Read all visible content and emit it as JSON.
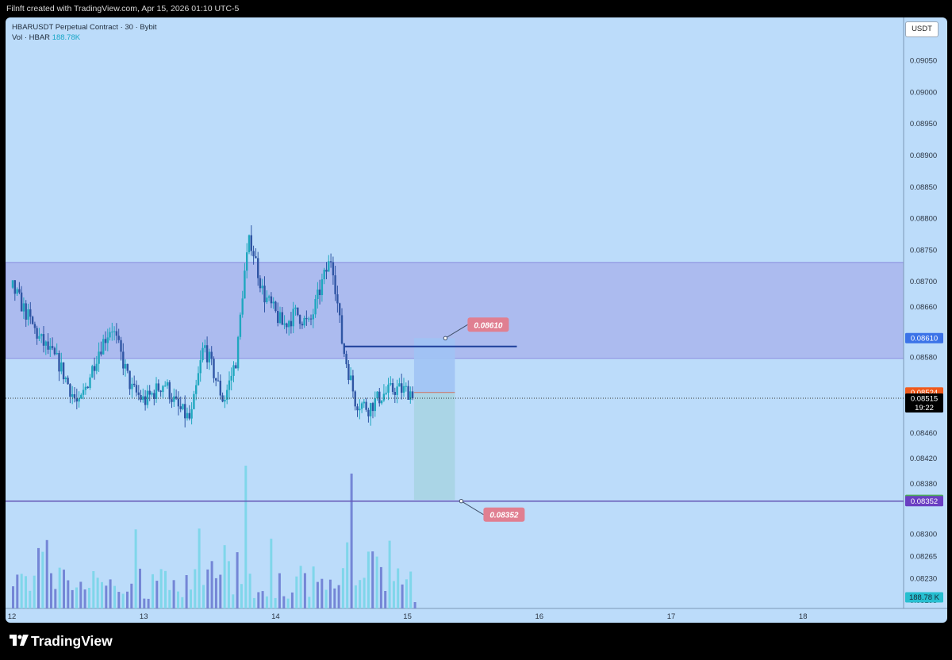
{
  "header": {
    "caption": "Filnft created with TradingView.com, Apr 15, 2026 01:10 UTC-5"
  },
  "legend": {
    "symbol": "HBARUSDT Perpetual Contract · 30 · Bybit",
    "vol_label": "Vol · HBAR",
    "vol_value": "188.78K"
  },
  "currency_button": "USDT",
  "footer": {
    "brand": "TradingView"
  },
  "colors": {
    "background": "#bcdcfa",
    "candle_up": "#1fa7bf",
    "candle_down": "#2f55a4",
    "zone": "#a9b5ec",
    "target_zone": "#a0c3f4",
    "stop_zone": "#a9d4e5",
    "entry_line": "#1d3f9a",
    "support_line": "#6454b4",
    "label_red": "#e07f91",
    "axis_blue": "#3b73e8",
    "axis_orange": "#f05a1c",
    "axis_green": "#4cae5a",
    "axis_purple": "#6a3ec2",
    "axis_teal": "#27bfd0"
  },
  "chart_data": {
    "type": "candlestick",
    "symbol": "HBARUSDT",
    "interval": "30",
    "exchange": "Bybit",
    "ylim": [
      0.08182,
      0.09118
    ],
    "x": [
      "12",
      "13",
      "14",
      "15",
      "16",
      "17",
      "18"
    ],
    "y_ticks": [
      "0.09050",
      "0.09000",
      "0.08950",
      "0.08900",
      "0.08850",
      "0.08800",
      "0.08750",
      "0.08700",
      "0.08660",
      "0.08580",
      "0.08460",
      "0.08420",
      "0.08380",
      "0.08300",
      "0.08265",
      "0.08230",
      "0.08195"
    ],
    "price_labels": [
      {
        "name": "target",
        "text": "0.08610",
        "value": 0.0861
      },
      {
        "name": "last-candle-open",
        "text": "0.08524",
        "value": 0.08524
      },
      {
        "name": "last-price",
        "text": "0.08515",
        "value": 0.08515,
        "time": "19:22"
      },
      {
        "name": "stop",
        "text": "0.08354",
        "value": 0.08354
      },
      {
        "name": "support",
        "text": "0.08352",
        "value": 0.08352
      },
      {
        "name": "volume",
        "text": "188.78 K"
      }
    ],
    "annotations": [
      {
        "type": "zone",
        "y_top": 0.0873,
        "y_bottom": 0.08578
      },
      {
        "type": "horizontal-line",
        "name": "entry-line",
        "y": 0.08597,
        "x_start": 14.52,
        "x_end": 15.83
      },
      {
        "type": "horizontal-line",
        "name": "support-line",
        "y": 0.08352
      },
      {
        "type": "position",
        "entry": 0.08524,
        "target": 0.0861,
        "stop": 0.08354,
        "x_start": 15.05,
        "x_end": 15.36
      },
      {
        "type": "label",
        "text": "0.08610",
        "value": 0.0861
      },
      {
        "type": "label",
        "text": "0.08352",
        "value": 0.08352
      }
    ],
    "series_path": [
      [
        12.0,
        0.0869
      ],
      [
        12.2,
        0.0861
      ],
      [
        12.35,
        0.0857
      ],
      [
        12.5,
        0.085
      ],
      [
        12.65,
        0.0859
      ],
      [
        12.75,
        0.0863
      ],
      [
        12.9,
        0.0853
      ],
      [
        13.0,
        0.0851
      ],
      [
        13.15,
        0.0854
      ],
      [
        13.25,
        0.085
      ],
      [
        13.35,
        0.0848
      ],
      [
        13.45,
        0.086
      ],
      [
        13.6,
        0.0851
      ],
      [
        13.7,
        0.0858
      ],
      [
        13.75,
        0.087
      ],
      [
        13.8,
        0.0877
      ],
      [
        13.9,
        0.0868
      ],
      [
        14.05,
        0.0863
      ],
      [
        14.15,
        0.0865
      ],
      [
        14.25,
        0.0863
      ],
      [
        14.35,
        0.087
      ],
      [
        14.42,
        0.0874
      ],
      [
        14.5,
        0.086
      ],
      [
        14.6,
        0.0851
      ],
      [
        14.7,
        0.085
      ],
      [
        14.8,
        0.0852
      ],
      [
        14.9,
        0.0853
      ],
      [
        15.05,
        0.08524
      ]
    ],
    "volume_bars": 96
  }
}
